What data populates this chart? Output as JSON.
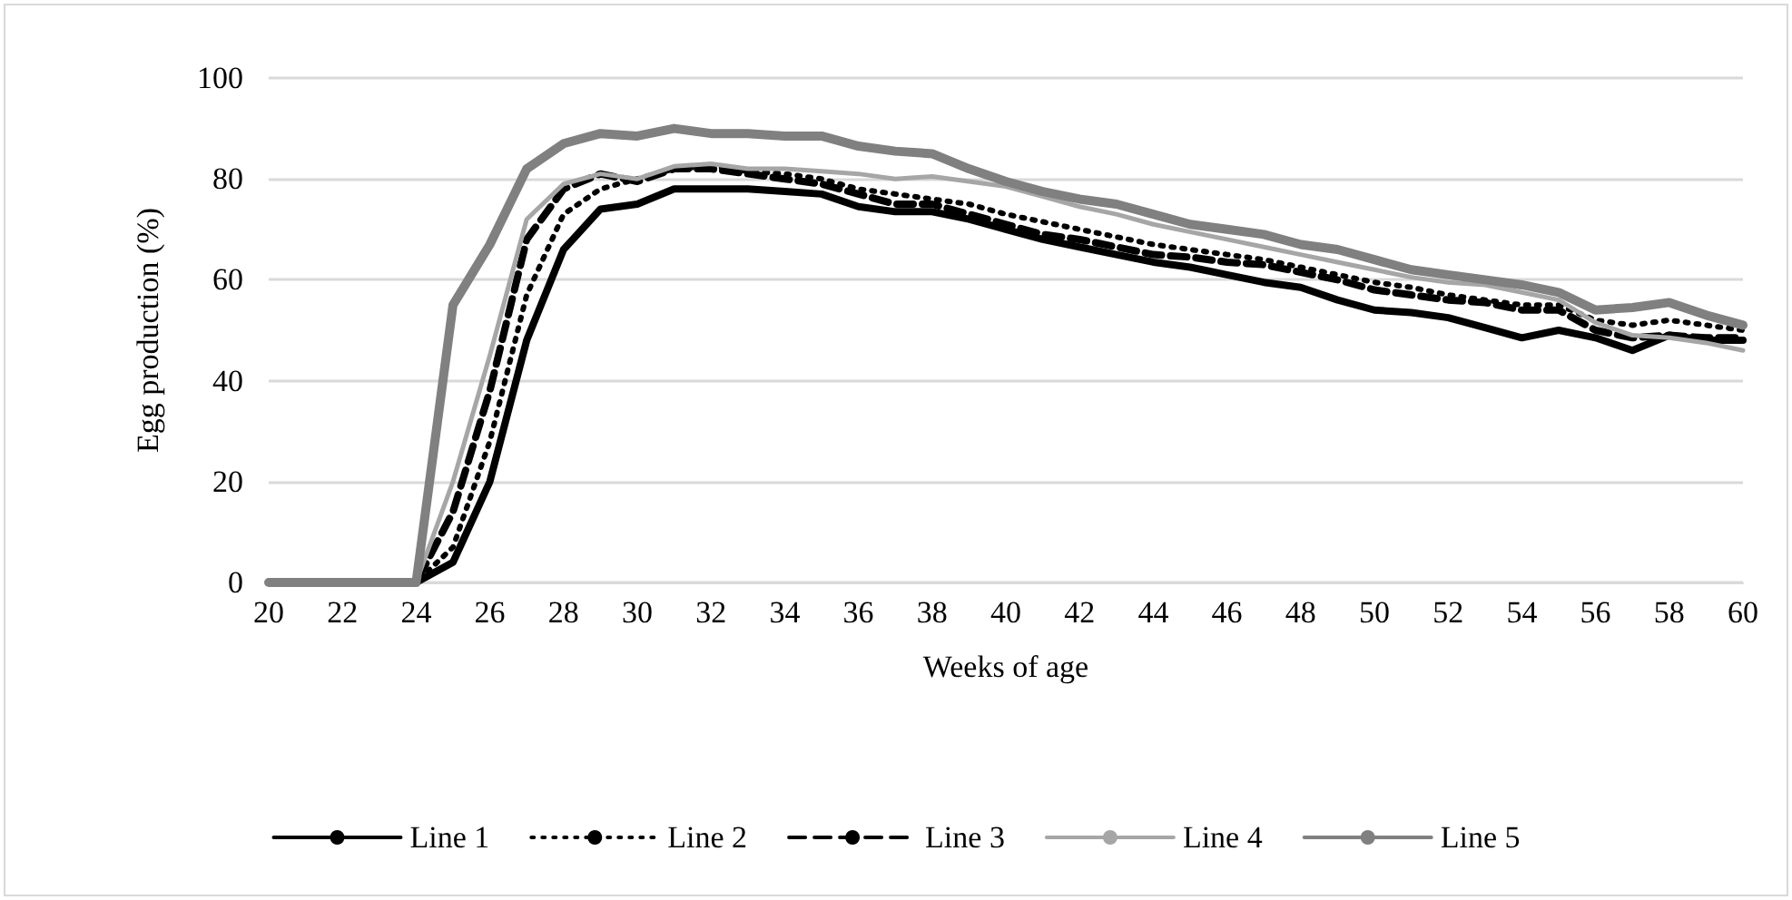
{
  "chart_data": {
    "type": "line",
    "xlabel": "Weeks of age",
    "ylabel": "Egg production (%)",
    "x": [
      20,
      21,
      22,
      23,
      24,
      25,
      26,
      27,
      28,
      29,
      30,
      31,
      32,
      33,
      34,
      35,
      36,
      37,
      38,
      39,
      40,
      41,
      42,
      43,
      44,
      45,
      46,
      47,
      48,
      49,
      50,
      51,
      52,
      53,
      54,
      55,
      56,
      57,
      58,
      59,
      60
    ],
    "xlim": [
      20,
      60
    ],
    "xticks": [
      20,
      22,
      24,
      26,
      28,
      30,
      32,
      34,
      36,
      38,
      40,
      42,
      44,
      46,
      48,
      50,
      52,
      54,
      56,
      58,
      60
    ],
    "ylim": [
      0,
      100
    ],
    "yticks": [
      0,
      20,
      40,
      60,
      80,
      100
    ],
    "grid": "y",
    "legend": "bottom",
    "marker": "none",
    "series": [
      {
        "name": "Line 1",
        "color": "#000000",
        "line_style": "solid",
        "values": [
          0,
          0,
          0,
          0,
          0,
          4,
          20,
          48,
          66,
          74,
          75,
          78,
          78,
          78,
          77.5,
          77,
          74.5,
          73.5,
          73.5,
          72,
          70,
          68,
          66.5,
          65,
          63.5,
          62.5,
          61,
          59.5,
          58.5,
          56,
          54,
          53.5,
          52.5,
          50.5,
          48.5,
          50,
          48.5,
          46,
          49,
          48,
          48
        ]
      },
      {
        "name": "Line 2",
        "color": "#000000",
        "line_style": "dotted",
        "values": [
          0,
          0,
          0,
          0,
          0,
          7,
          28,
          57,
          73,
          78,
          80,
          82,
          82.5,
          81.5,
          81,
          80,
          78,
          77,
          76,
          75,
          73,
          71.5,
          70,
          68.5,
          67,
          66,
          65,
          64,
          62.5,
          61,
          59.5,
          58.5,
          57,
          56,
          55,
          55,
          52,
          51,
          52,
          51,
          50
        ]
      },
      {
        "name": "Line 3",
        "color": "#000000",
        "line_style": "dashed",
        "values": [
          0,
          0,
          0,
          0,
          0,
          14,
          38,
          68,
          78,
          81,
          79.5,
          82,
          82,
          81,
          80,
          79,
          77,
          75,
          75,
          73,
          71,
          69,
          68,
          66.5,
          65,
          64.5,
          63.5,
          63,
          61.5,
          60,
          58,
          57,
          56,
          55.5,
          54,
          54,
          50,
          48.5,
          49,
          48.5,
          48.5
        ]
      },
      {
        "name": "Line 4",
        "color": "#a6a6a6",
        "line_style": "solid",
        "values": [
          0,
          0,
          0,
          0,
          0,
          20,
          45,
          72,
          79,
          81,
          80,
          82.5,
          83,
          82,
          82,
          81.5,
          81,
          80,
          80.5,
          79.5,
          78.5,
          76.5,
          74.5,
          73,
          71,
          69.5,
          68,
          66.5,
          65,
          63.5,
          62,
          60.5,
          59.5,
          59,
          57.5,
          56,
          51.5,
          49,
          48.5,
          47.5,
          46
        ]
      },
      {
        "name": "Line 5",
        "color": "#808080",
        "line_style": "solid",
        "values": [
          0,
          0,
          0,
          0,
          0,
          55,
          67,
          82,
          87,
          89,
          88.5,
          90,
          89,
          89,
          88.5,
          88.5,
          86.5,
          85.5,
          85,
          82,
          79.5,
          77.5,
          76,
          75,
          73,
          71,
          70,
          69,
          67,
          66,
          64,
          62,
          61,
          60,
          59,
          57.5,
          54,
          54.5,
          55.5,
          53,
          51
        ]
      }
    ]
  }
}
